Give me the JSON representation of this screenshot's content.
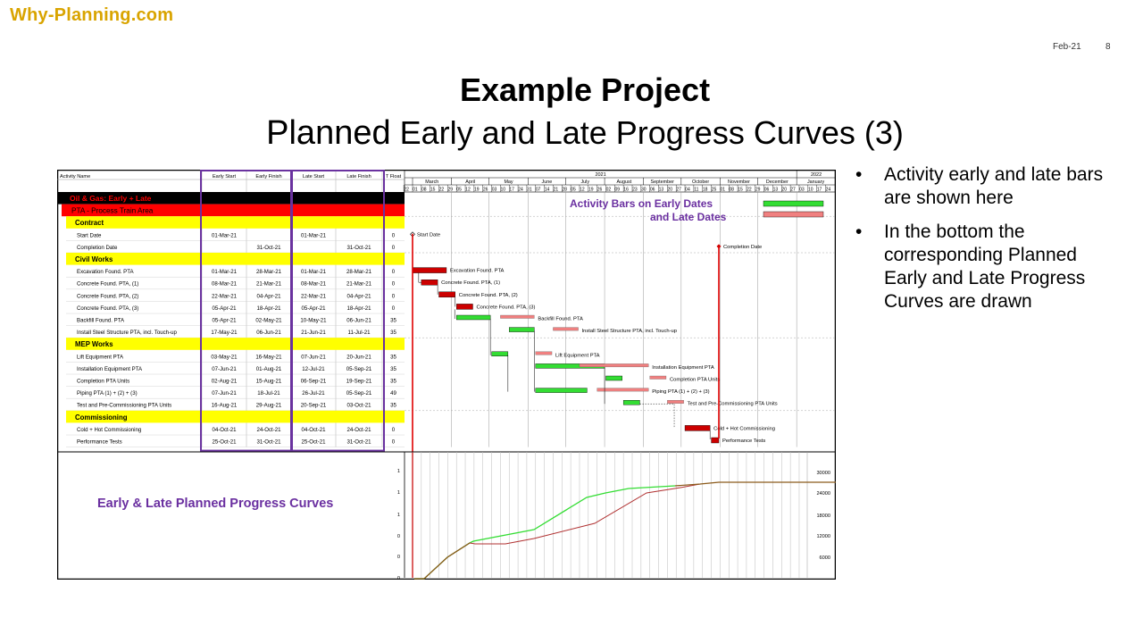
{
  "brand": "Why-Planning.com",
  "date": "Feb-21",
  "page_number": "8",
  "title": "Example Project",
  "subtitle_first": "Planned",
  "subtitle_rest": " Early and Late Progress Curves (3)",
  "bullets": [
    "Activity early and late bars are shown here",
    "In the bottom the corresponding Planned Early and Late Progress Curves are drawn"
  ],
  "gantt": {
    "headers": [
      "Activity Name",
      "Early Start",
      "Early Finish",
      "Late Start",
      "Late Finish",
      "T Float"
    ],
    "year_2021": "2021",
    "year_2022": "2022",
    "months": [
      "March",
      "April",
      "May",
      "June",
      "July",
      "August",
      "September",
      "October",
      "November",
      "December",
      "January"
    ],
    "days": [
      "22",
      "01",
      "08",
      "15",
      "22",
      "29",
      "05",
      "12",
      "19",
      "26",
      "03",
      "10",
      "17",
      "24",
      "31",
      "07",
      "14",
      "21",
      "28",
      "05",
      "12",
      "19",
      "26",
      "02",
      "09",
      "16",
      "23",
      "30",
      "06",
      "13",
      "20",
      "27",
      "04",
      "11",
      "18",
      "25",
      "01",
      "08",
      "15",
      "22",
      "29",
      "06",
      "13",
      "20",
      "27",
      "03",
      "10",
      "17",
      "24"
    ],
    "rows": [
      {
        "type": "project",
        "name": "Oil & Gas: Early + Late"
      },
      {
        "type": "area",
        "name": "PTA - Process Train Area"
      },
      {
        "type": "group",
        "name": "Contract"
      },
      {
        "type": "act",
        "name": "Start Date",
        "es": "01-Mar-21",
        "ef": "",
        "ls": "01-Mar-21",
        "lf": "",
        "tf": "0"
      },
      {
        "type": "act",
        "name": "Completion Date",
        "es": "",
        "ef": "31-Oct-21",
        "ls": "",
        "lf": "31-Oct-21",
        "tf": "0"
      },
      {
        "type": "group",
        "name": "Civil Works"
      },
      {
        "type": "act",
        "name": "Excavation Found. PTA",
        "es": "01-Mar-21",
        "ef": "28-Mar-21",
        "ls": "01-Mar-21",
        "lf": "28-Mar-21",
        "tf": "0"
      },
      {
        "type": "act",
        "name": "Concrete Found. PTA, (1)",
        "es": "08-Mar-21",
        "ef": "21-Mar-21",
        "ls": "08-Mar-21",
        "lf": "21-Mar-21",
        "tf": "0"
      },
      {
        "type": "act",
        "name": "Concrete Found. PTA, (2)",
        "es": "22-Mar-21",
        "ef": "04-Apr-21",
        "ls": "22-Mar-21",
        "lf": "04-Apr-21",
        "tf": "0"
      },
      {
        "type": "act",
        "name": "Concrete Found. PTA, (3)",
        "es": "05-Apr-21",
        "ef": "18-Apr-21",
        "ls": "05-Apr-21",
        "lf": "18-Apr-21",
        "tf": "0"
      },
      {
        "type": "act",
        "name": "Backfill Found. PTA",
        "es": "05-Apr-21",
        "ef": "02-May-21",
        "ls": "10-May-21",
        "lf": "06-Jun-21",
        "tf": "35"
      },
      {
        "type": "act",
        "name": "Install Steel Structure PTA, incl. Touch-up",
        "es": "17-May-21",
        "ef": "06-Jun-21",
        "ls": "21-Jun-21",
        "lf": "11-Jul-21",
        "tf": "35"
      },
      {
        "type": "group",
        "name": "MEP Works"
      },
      {
        "type": "act",
        "name": "Lift Equipment PTA",
        "es": "03-May-21",
        "ef": "16-May-21",
        "ls": "07-Jun-21",
        "lf": "20-Jun-21",
        "tf": "35"
      },
      {
        "type": "act",
        "name": "Installation Equipment PTA",
        "es": "07-Jun-21",
        "ef": "01-Aug-21",
        "ls": "12-Jul-21",
        "lf": "05-Sep-21",
        "tf": "35"
      },
      {
        "type": "act",
        "name": "Completion PTA Units",
        "es": "02-Aug-21",
        "ef": "15-Aug-21",
        "ls": "06-Sep-21",
        "lf": "19-Sep-21",
        "tf": "35"
      },
      {
        "type": "act",
        "name": "Piping PTA (1) + (2) + (3)",
        "es": "07-Jun-21",
        "ef": "18-Jul-21",
        "ls": "26-Jul-21",
        "lf": "05-Sep-21",
        "tf": "49"
      },
      {
        "type": "act",
        "name": "Test and Pre-Commissioning PTA Units",
        "es": "16-Aug-21",
        "ef": "29-Aug-21",
        "ls": "20-Sep-21",
        "lf": "03-Oct-21",
        "tf": "35"
      },
      {
        "type": "group",
        "name": "Commissioning"
      },
      {
        "type": "act",
        "name": "Cold + Hot Commissioning",
        "es": "04-Oct-21",
        "ef": "24-Oct-21",
        "ls": "04-Oct-21",
        "lf": "24-Oct-21",
        "tf": "0"
      },
      {
        "type": "act",
        "name": "Performance Tests",
        "es": "25-Oct-21",
        "ef": "31-Oct-21",
        "ls": "25-Oct-21",
        "lf": "31-Oct-21",
        "tf": "0"
      }
    ],
    "bar_labels": [
      {
        "row": 3,
        "text": "Start Date"
      },
      {
        "row": 4,
        "text": "Completion Date"
      },
      {
        "row": 6,
        "text": "Excavation Found. PTA"
      },
      {
        "row": 7,
        "text": "Concrete Found. PTA, (1)"
      },
      {
        "row": 8,
        "text": "Concrete Found. PTA, (2)"
      },
      {
        "row": 9,
        "text": "Concrete Found. PTA, (3)"
      },
      {
        "row": 10,
        "text": "Backfill Found. PTA"
      },
      {
        "row": 11,
        "text": "Install Steel Structure PTA, incl. Touch-up"
      },
      {
        "row": 13,
        "text": "Lift Equipment PTA"
      },
      {
        "row": 14,
        "text": "Installation Equipment PTA"
      },
      {
        "row": 15,
        "text": "Completion PTA Units"
      },
      {
        "row": 16,
        "text": "Piping PTA (1) + (2) + (3)"
      },
      {
        "row": 17,
        "text": "Test and Pre-Commissioning PTA Units"
      },
      {
        "row": 19,
        "text": "Cold + Hot Commissioning"
      },
      {
        "row": 20,
        "text": "Performance Tests"
      }
    ],
    "annotation_line1": "Activity Bars on  Early Dates",
    "annotation_line2": "and Late Dates",
    "curves_caption": "Early & Late Planned Progress Curves",
    "left_axis_ticks": [
      "1",
      "1",
      "1",
      "0",
      "0",
      "0"
    ],
    "right_axis_ticks": [
      "30000",
      "24000",
      "18000",
      "12000",
      "6000"
    ],
    "colors": {
      "project_row": "#000000",
      "area_row": "#ff0000",
      "group_row": "#ffff00",
      "early_bar": "#33dd33",
      "late_bar": "#f08080",
      "critical_bar": "#cc0000",
      "date_highlight_box": "#6a329f",
      "early_curve": "#33dd33",
      "late_curve": "#b03030",
      "merged_curve": "#8b5a1a",
      "annotation_text": "#6a2fa0",
      "brand": "#d9a400"
    }
  }
}
